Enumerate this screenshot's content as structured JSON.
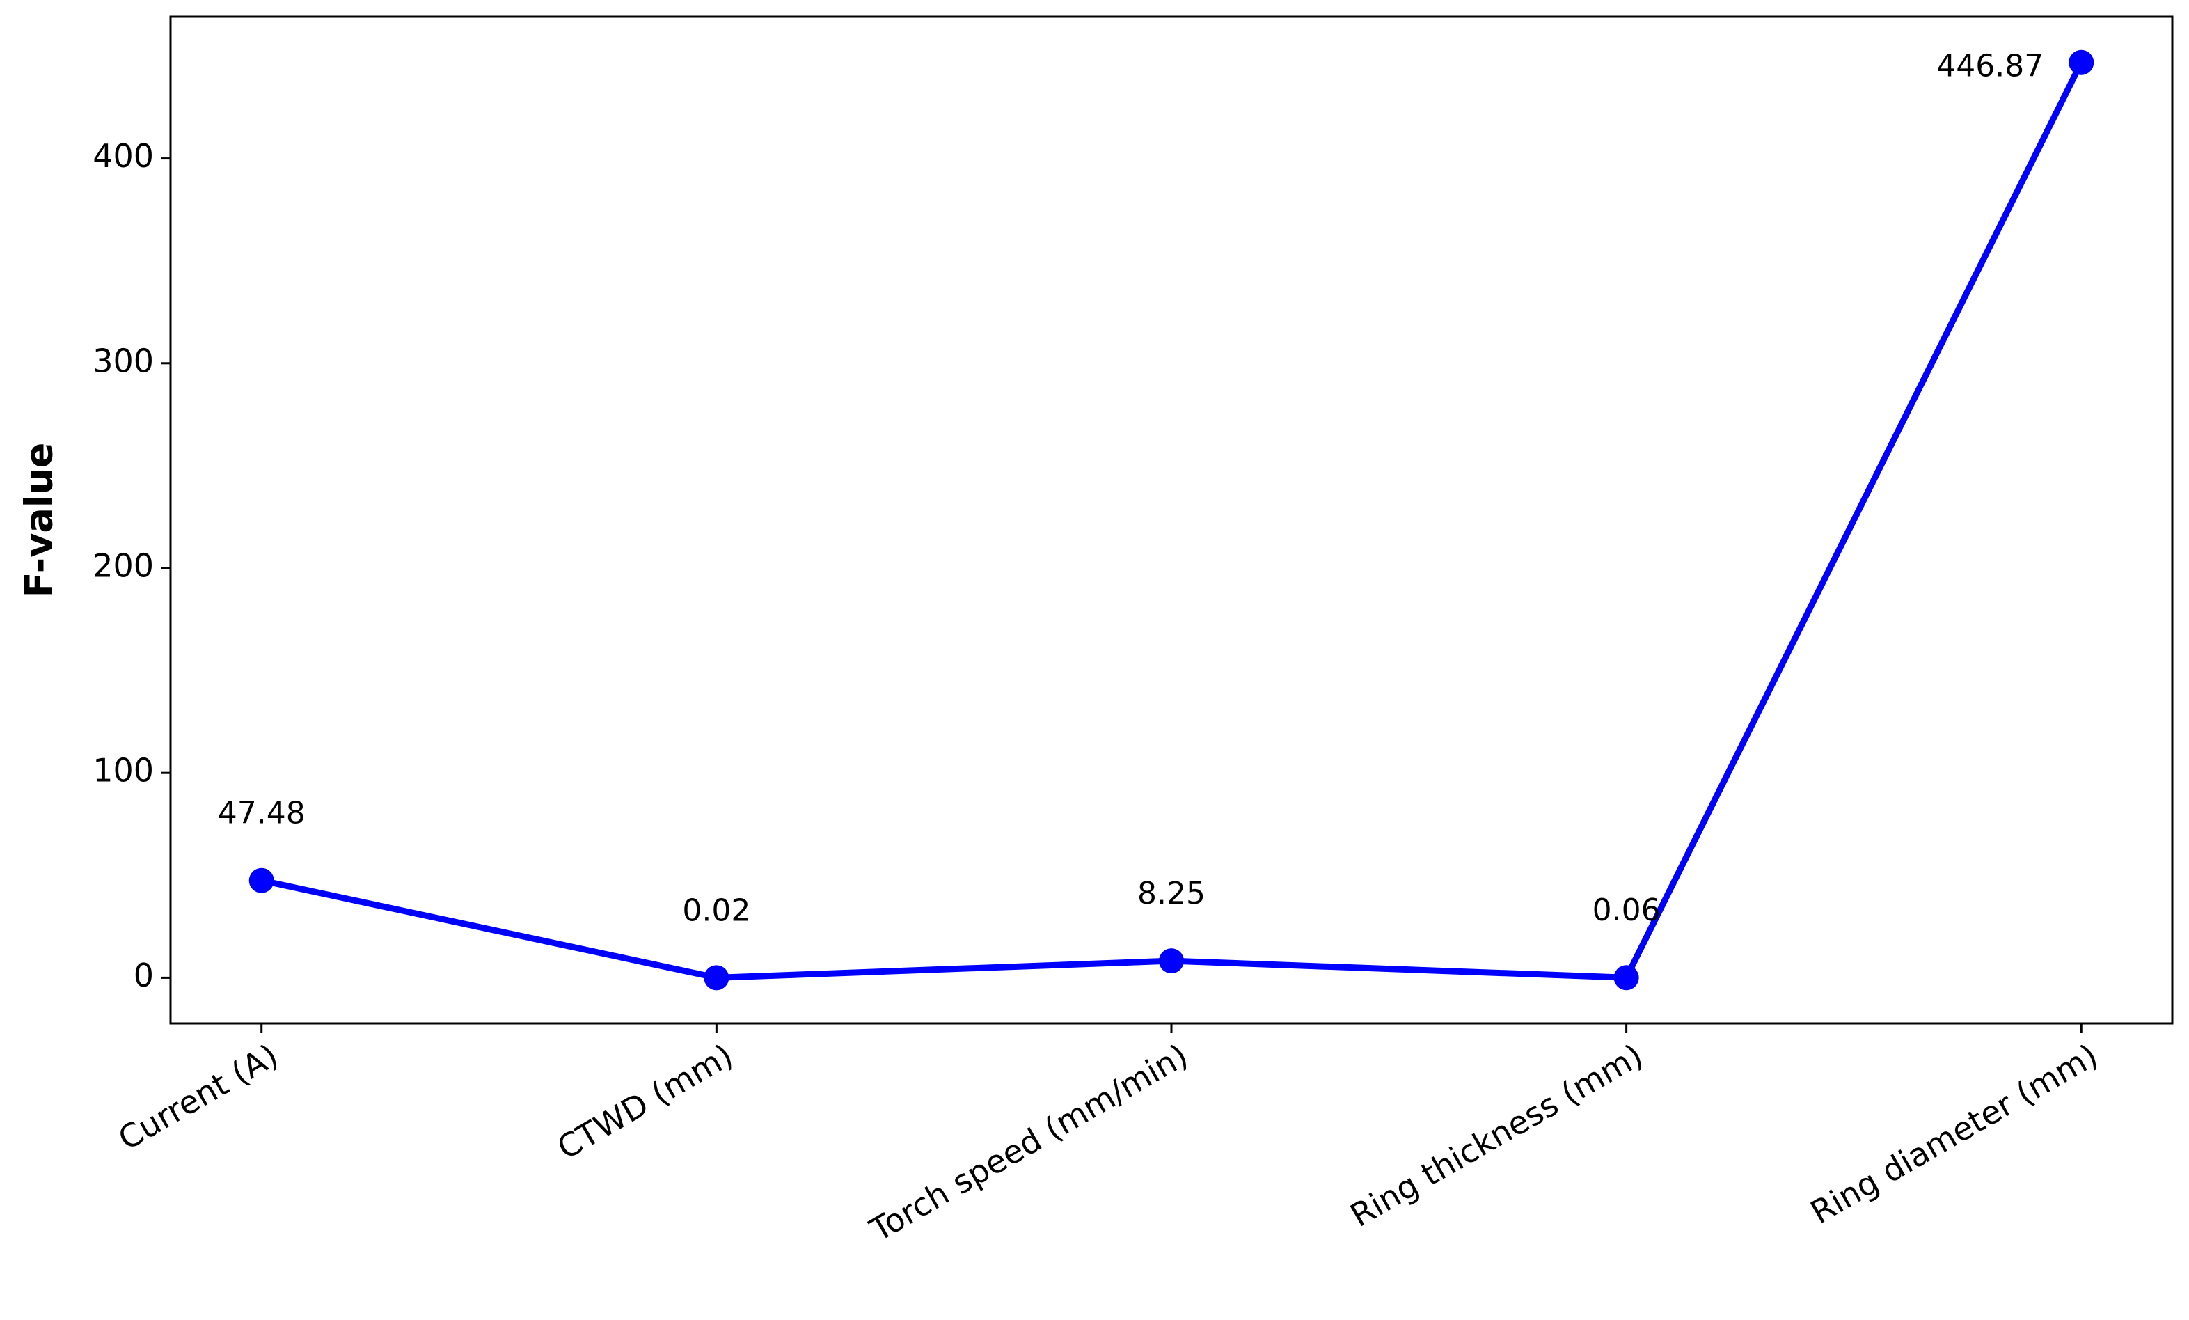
{
  "chart_data": {
    "type": "line",
    "categories": [
      "Current (A)",
      "CTWD (mm)",
      "Torch speed (mm/min)",
      "Ring thickness (mm)",
      "Ring diameter (mm)"
    ],
    "values": [
      47.48,
      0.02,
      8.25,
      0.06,
      446.87
    ],
    "color": "#0000ff",
    "ylabel": "F-value",
    "ylim": [
      -22.3,
      469.2
    ],
    "yticks": [
      0,
      100,
      200,
      300,
      400
    ],
    "grid": false
  }
}
